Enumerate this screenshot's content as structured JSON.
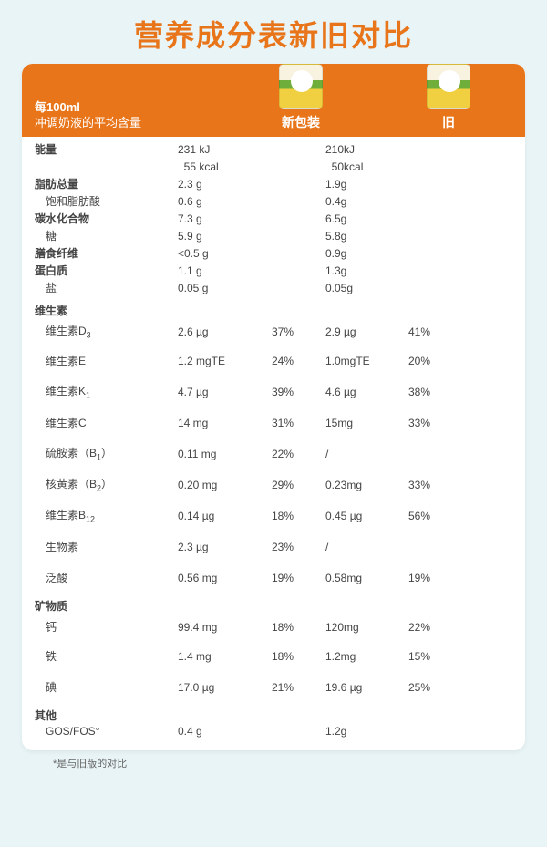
{
  "title": "营养成分表新旧对比",
  "header": {
    "line1": "每100ml",
    "line2": "冲调奶液的平均含量",
    "col_new": "新包装",
    "col_old": "旧"
  },
  "rows": [
    {
      "type": "row",
      "label": "能量",
      "bold": true,
      "new": "231 kJ",
      "old": "210kJ"
    },
    {
      "type": "row",
      "label": "",
      "new": "  55 kcal",
      "old": "  50kcal"
    },
    {
      "type": "row",
      "label": "脂肪总量",
      "bold": true,
      "new": "2.3 g",
      "old": "1.9g"
    },
    {
      "type": "row",
      "label": "饱和脂肪酸",
      "indent": true,
      "new": "0.6 g",
      "old": "0.4g"
    },
    {
      "type": "row",
      "label": "碳水化合物",
      "bold": true,
      "new": "7.3 g",
      "old": "6.5g"
    },
    {
      "type": "row",
      "label": "糖",
      "indent": true,
      "new": "5.9 g",
      "old": "5.8g"
    },
    {
      "type": "row",
      "label": "膳食纤维",
      "bold": true,
      "new": "<0.5 g",
      "old": "0.9g"
    },
    {
      "type": "row",
      "label": "蛋白质",
      "bold": true,
      "new": "1.1 g",
      "old": "1.3g"
    },
    {
      "type": "row",
      "label": "盐",
      "indent": true,
      "new": "0.05 g",
      "old": "0.05g"
    },
    {
      "type": "sect",
      "label": "维生素"
    },
    {
      "type": "row",
      "tall": true,
      "label": "维生素D₃",
      "indent": true,
      "new": "2.6 µg",
      "newpct": "37%",
      "old": "2.9 µg",
      "oldpct": "41%"
    },
    {
      "type": "row",
      "taller": true,
      "label": "维生素E",
      "indent": true,
      "new": "1.2 mgTE",
      "newpct": "24%",
      "old": "1.0mgTE",
      "oldpct": "20%"
    },
    {
      "type": "row",
      "taller": true,
      "label": "维生素K₁",
      "indent": true,
      "new": "4.7 µg",
      "newpct": "39%",
      "old": "4.6 µg",
      "oldpct": "38%"
    },
    {
      "type": "row",
      "taller": true,
      "label": "维生素C",
      "indent": true,
      "new": "14 mg",
      "newpct": "31%",
      "old": "15mg",
      "oldpct": "33%"
    },
    {
      "type": "row",
      "taller": true,
      "label": "硫胺素（B₁）",
      "indent": true,
      "new": "0.11 mg",
      "newpct": "22%",
      "old": "/",
      "oldpct": ""
    },
    {
      "type": "row",
      "taller": true,
      "label": "核黄素（B₂）",
      "indent": true,
      "new": "0.20 mg",
      "newpct": "29%",
      "old": "0.23mg",
      "oldpct": "33%"
    },
    {
      "type": "row",
      "taller": true,
      "label": "维生素B₁₂",
      "indent": true,
      "new": "0.14 µg",
      "newpct": "18%",
      "old": "0.45 µg",
      "oldpct": "56%"
    },
    {
      "type": "row",
      "taller": true,
      "label": "生物素",
      "indent": true,
      "new": "2.3 µg",
      "newpct": "23%",
      "old": "/",
      "oldpct": ""
    },
    {
      "type": "row",
      "taller": true,
      "label": "泛酸",
      "indent": true,
      "new": "0.56 mg",
      "newpct": "19%",
      "old": "0.58mg",
      "oldpct": "19%"
    },
    {
      "type": "sect",
      "label": "矿物质"
    },
    {
      "type": "row",
      "tall": true,
      "label": "钙",
      "indent": true,
      "new": "99.4 mg",
      "newpct": "18%",
      "old": "120mg",
      "oldpct": "22%"
    },
    {
      "type": "row",
      "taller": true,
      "label": "铁",
      "indent": true,
      "new": "1.4 mg",
      "newpct": "18%",
      "old": "1.2mg",
      "oldpct": "15%"
    },
    {
      "type": "row",
      "taller": true,
      "label": "碘",
      "indent": true,
      "new": "17.0 µg",
      "newpct": "21%",
      "old": "19.6 µg",
      "oldpct": "25%"
    },
    {
      "type": "sect",
      "label": "其他"
    },
    {
      "type": "row",
      "label": "GOS/FOS°",
      "indent": true,
      "new": "0.4 g",
      "old": "1.2g"
    }
  ],
  "footnote": "*是与旧版的对比"
}
